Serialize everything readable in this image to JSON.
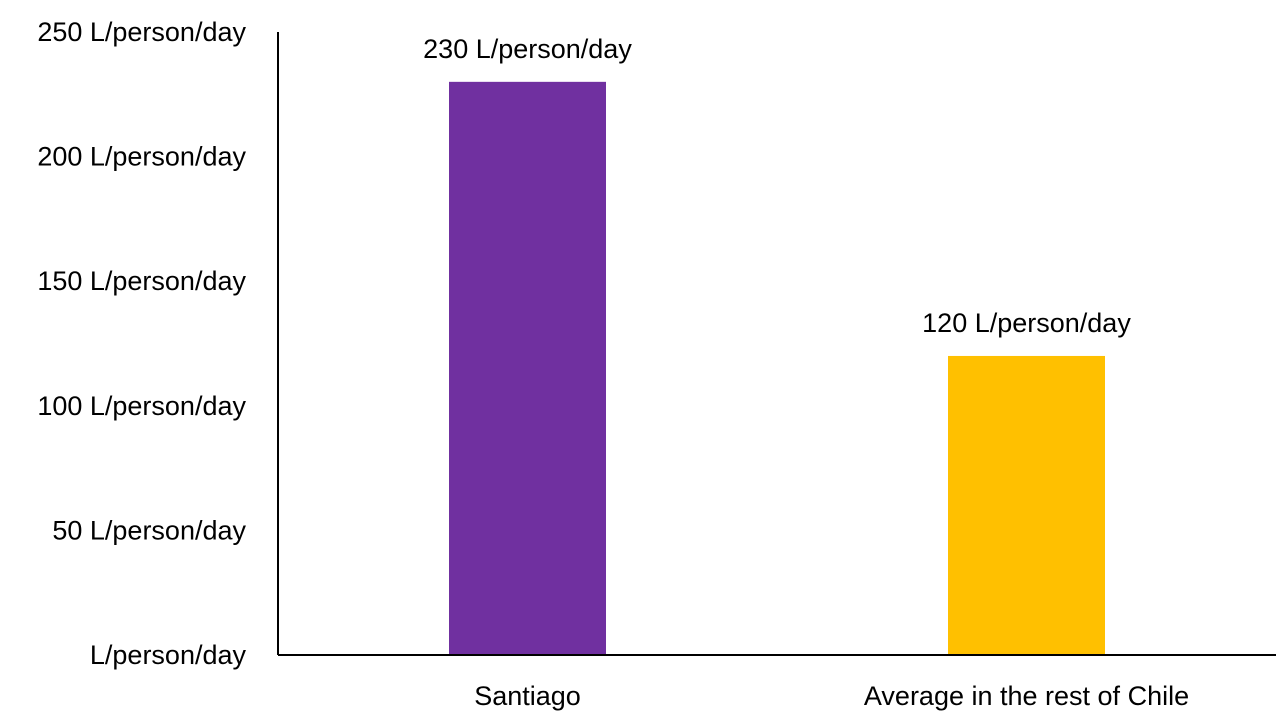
{
  "chart_data": {
    "type": "bar",
    "title": "",
    "xlabel": "",
    "ylabel": "",
    "categories": [
      "Santiago",
      "Average in the rest of Chile"
    ],
    "values": [
      230,
      120
    ],
    "data_labels": [
      "230 L/person/day",
      "120 L/person/day"
    ],
    "bar_colors": [
      "#7030A0",
      "#FFC000"
    ],
    "ylim": [
      0,
      250
    ],
    "yticks": [
      0,
      50,
      100,
      150,
      200,
      250
    ],
    "ytick_labels": [
      " L/person/day",
      "50 L/person/day",
      "100 L/person/day",
      "150 L/person/day",
      "200 L/person/day",
      "250 L/person/day"
    ],
    "grid": false,
    "legend": "none"
  }
}
